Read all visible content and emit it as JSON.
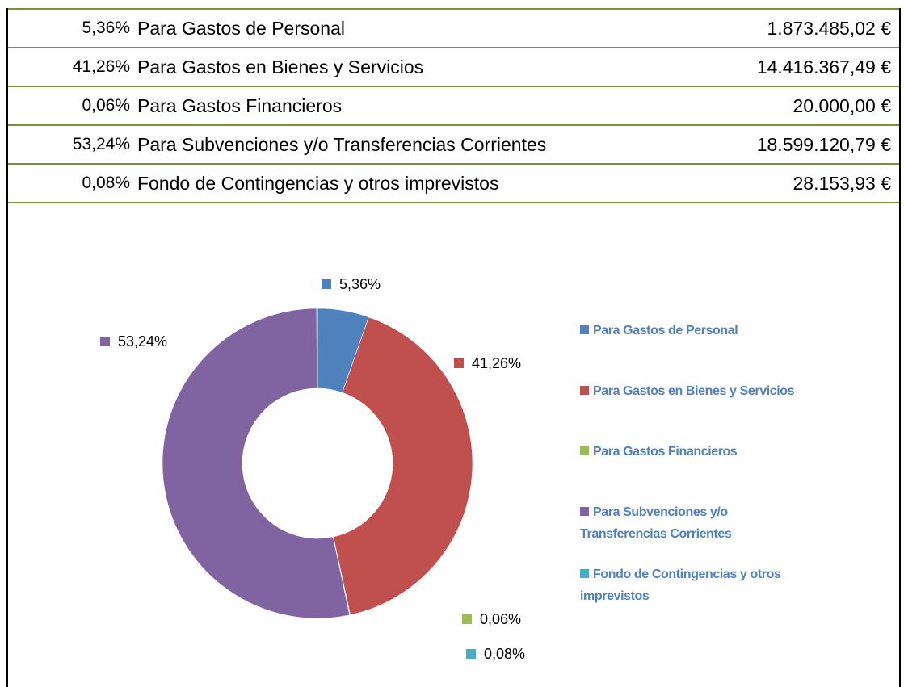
{
  "table": {
    "rows": [
      [
        "5,36%",
        "Para Gastos de Personal",
        "1.873.485,02 €"
      ],
      [
        "41,26%",
        "Para Gastos en Bienes y Servicios",
        "14.416.367,49 €"
      ],
      [
        "0,06%",
        "Para Gastos Financieros",
        "20.000,00 €"
      ],
      [
        "53,24%",
        "Para Subvenciones y/o Transferencias Corrientes",
        "18.599.120,79 €"
      ],
      [
        "0,08%",
        "Fondo de Contingencias y otros imprevistos",
        "28.153,93 €"
      ]
    ]
  },
  "chart_data": {
    "type": "pie",
    "donut": true,
    "categories": [
      "Para Gastos de Personal",
      "Para Gastos en Bienes y Servicios",
      "Para Gastos Financieros",
      "Para Subvenciones y/o Transferencias Corrientes",
      "Fondo de Contingencias y otros imprevistos"
    ],
    "values": [
      5.36,
      41.26,
      0.06,
      53.24,
      0.08
    ],
    "value_labels": [
      "5,36%",
      "41,26%",
      "0,06%",
      "53,24%",
      "0,08%"
    ],
    "colors": [
      "#4f81bd",
      "#c0504d",
      "#9bbb59",
      "#8064a2",
      "#4bacc6"
    ],
    "legend": "right"
  }
}
